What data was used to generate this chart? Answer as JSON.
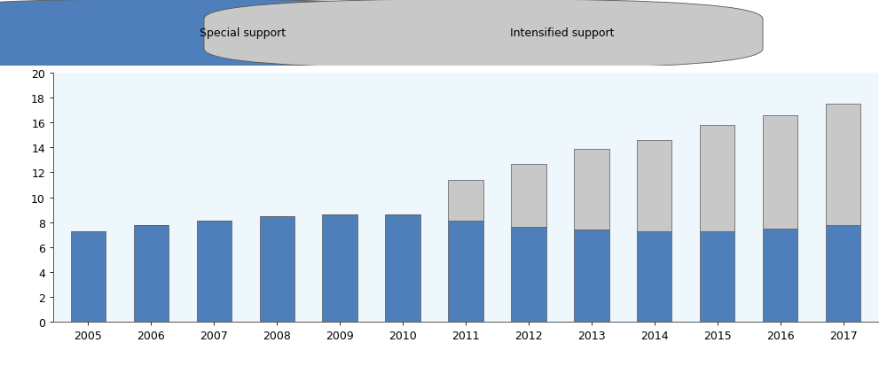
{
  "years": [
    2005,
    2006,
    2007,
    2008,
    2009,
    2010,
    2011,
    2012,
    2013,
    2014,
    2015,
    2016,
    2017
  ],
  "special_support": [
    7.3,
    7.8,
    8.1,
    8.5,
    8.6,
    8.6,
    8.1,
    7.6,
    7.4,
    7.3,
    7.3,
    7.5,
    7.8
  ],
  "intensified_support": [
    0.0,
    0.0,
    0.0,
    0.0,
    0.0,
    0.0,
    3.3,
    5.1,
    6.5,
    7.3,
    8.5,
    9.1,
    9.7
  ],
  "bar_color_special": "#4f7fba",
  "bar_color_intensified": "#c8c8c8",
  "bar_edgecolor": "#555555",
  "plot_bg_color": "#eef7fb",
  "figure_bg_color": "#ffffff",
  "legend_bg_color": "#e8e8e8",
  "ylim": [
    0,
    20
  ],
  "yticks": [
    0,
    2,
    4,
    6,
    8,
    10,
    12,
    14,
    16,
    18,
    20
  ],
  "legend_special": "Special support",
  "legend_intensified": "Intensified support",
  "bar_width": 0.55,
  "tick_fontsize": 9,
  "legend_fontsize": 9
}
